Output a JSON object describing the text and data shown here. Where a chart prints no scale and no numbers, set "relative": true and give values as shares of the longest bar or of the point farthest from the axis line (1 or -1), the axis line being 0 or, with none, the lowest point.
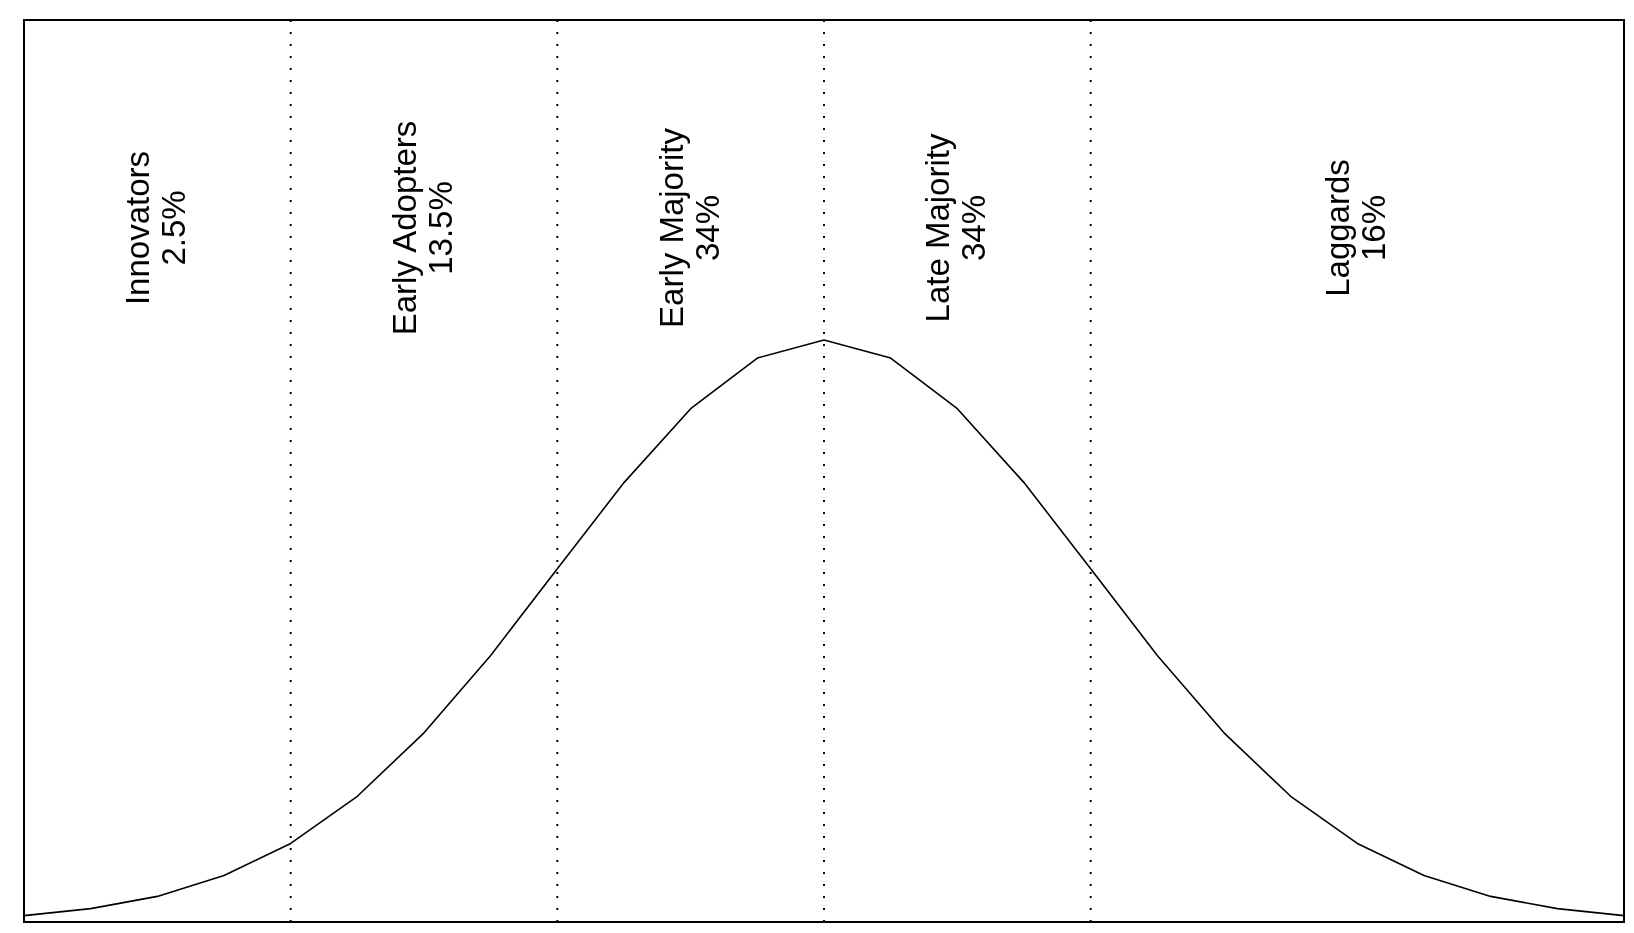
{
  "chart_data": {
    "type": "line",
    "relative": true,
    "grid": "x",
    "marker": "none",
    "line_style": "solid",
    "categories": [
      null,
      null,
      null,
      null,
      null,
      null,
      null,
      null,
      null,
      null,
      null,
      null,
      null,
      null,
      null,
      null,
      null,
      null,
      null,
      null,
      null,
      null,
      null,
      null,
      null
    ],
    "series": [
      {
        "color": "#000000",
        "values": [
          0.011,
          0.023,
          0.044,
          0.08,
          0.135,
          0.216,
          0.325,
          0.458,
          0.607,
          0.755,
          0.882,
          0.969,
          1,
          0.969,
          0.882,
          0.755,
          0.607,
          0.458,
          0.325,
          0.216,
          0.135,
          0.08,
          0.044,
          0.023,
          0.011
        ]
      }
    ],
    "annotations": [
      "Innovators\n2.5%",
      "Early Adopters\n13.5%",
      "Early Majority\n34%",
      "Late Majority\n34%",
      "Laggards\n16%"
    ]
  }
}
